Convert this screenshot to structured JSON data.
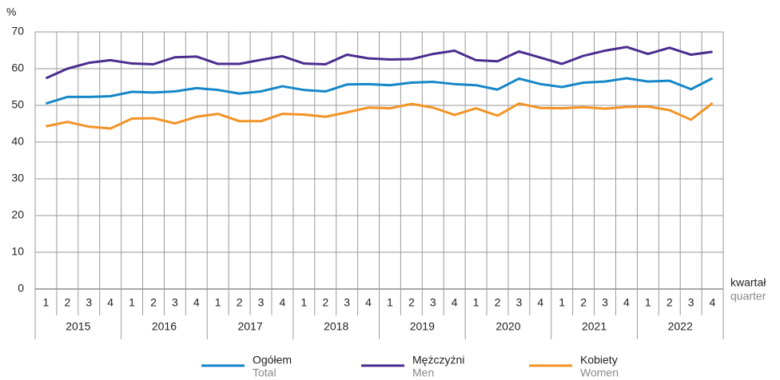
{
  "chart_data": {
    "type": "line",
    "y_label": "%",
    "x_label": "kwartał",
    "x_label_en": "quarter",
    "categories": [
      "1",
      "2",
      "3",
      "4",
      "1",
      "2",
      "3",
      "4",
      "1",
      "2",
      "3",
      "4",
      "1",
      "2",
      "3",
      "4",
      "1",
      "2",
      "3",
      "4",
      "1",
      "2",
      "3",
      "4",
      "1",
      "2",
      "3",
      "4",
      "1",
      "2",
      "3",
      "4"
    ],
    "groups": [
      "2015",
      "2016",
      "2017",
      "2018",
      "2019",
      "2020",
      "2021",
      "2022"
    ],
    "ylim": [
      0,
      70
    ],
    "yticks": [
      0,
      10,
      20,
      30,
      40,
      50,
      60,
      70
    ],
    "grid": true,
    "series": [
      {
        "name": "Ogółem",
        "name_en": "Total",
        "color": "#1587c8",
        "values": [
          50.5,
          52.3,
          52.3,
          52.5,
          53.7,
          53.5,
          53.8,
          54.7,
          54.2,
          53.2,
          53.8,
          55.2,
          54.2,
          53.8,
          55.7,
          55.8,
          55.5,
          56.2,
          56.4,
          55.8,
          55.5,
          54.3,
          57.3,
          55.8,
          55.0,
          56.2,
          56.5,
          57.4,
          56.5,
          56.7,
          54.4,
          57.4
        ]
      },
      {
        "name": "Mężczyźni",
        "name_en": "Men",
        "color": "#4b2d8f",
        "values": [
          57.4,
          60.0,
          61.6,
          62.3,
          61.4,
          61.2,
          63.1,
          63.3,
          61.3,
          61.3,
          62.4,
          63.4,
          61.4,
          61.2,
          63.8,
          62.8,
          62.5,
          62.6,
          64.0,
          64.9,
          62.3,
          62.0,
          64.7,
          63.0,
          61.3,
          63.5,
          64.9,
          65.9,
          64.0,
          65.7,
          63.8,
          64.6
        ]
      },
      {
        "name": "Kobiety",
        "name_en": "Women",
        "color": "#f39325",
        "values": [
          44.3,
          45.5,
          44.2,
          43.7,
          46.4,
          46.5,
          45.1,
          46.9,
          47.7,
          45.7,
          45.7,
          47.7,
          47.5,
          46.9,
          48.1,
          49.4,
          49.2,
          50.4,
          49.4,
          47.4,
          49.2,
          47.2,
          50.5,
          49.3,
          49.2,
          49.5,
          49.1,
          49.6,
          49.7,
          48.7,
          46.1,
          50.6
        ]
      }
    ]
  }
}
